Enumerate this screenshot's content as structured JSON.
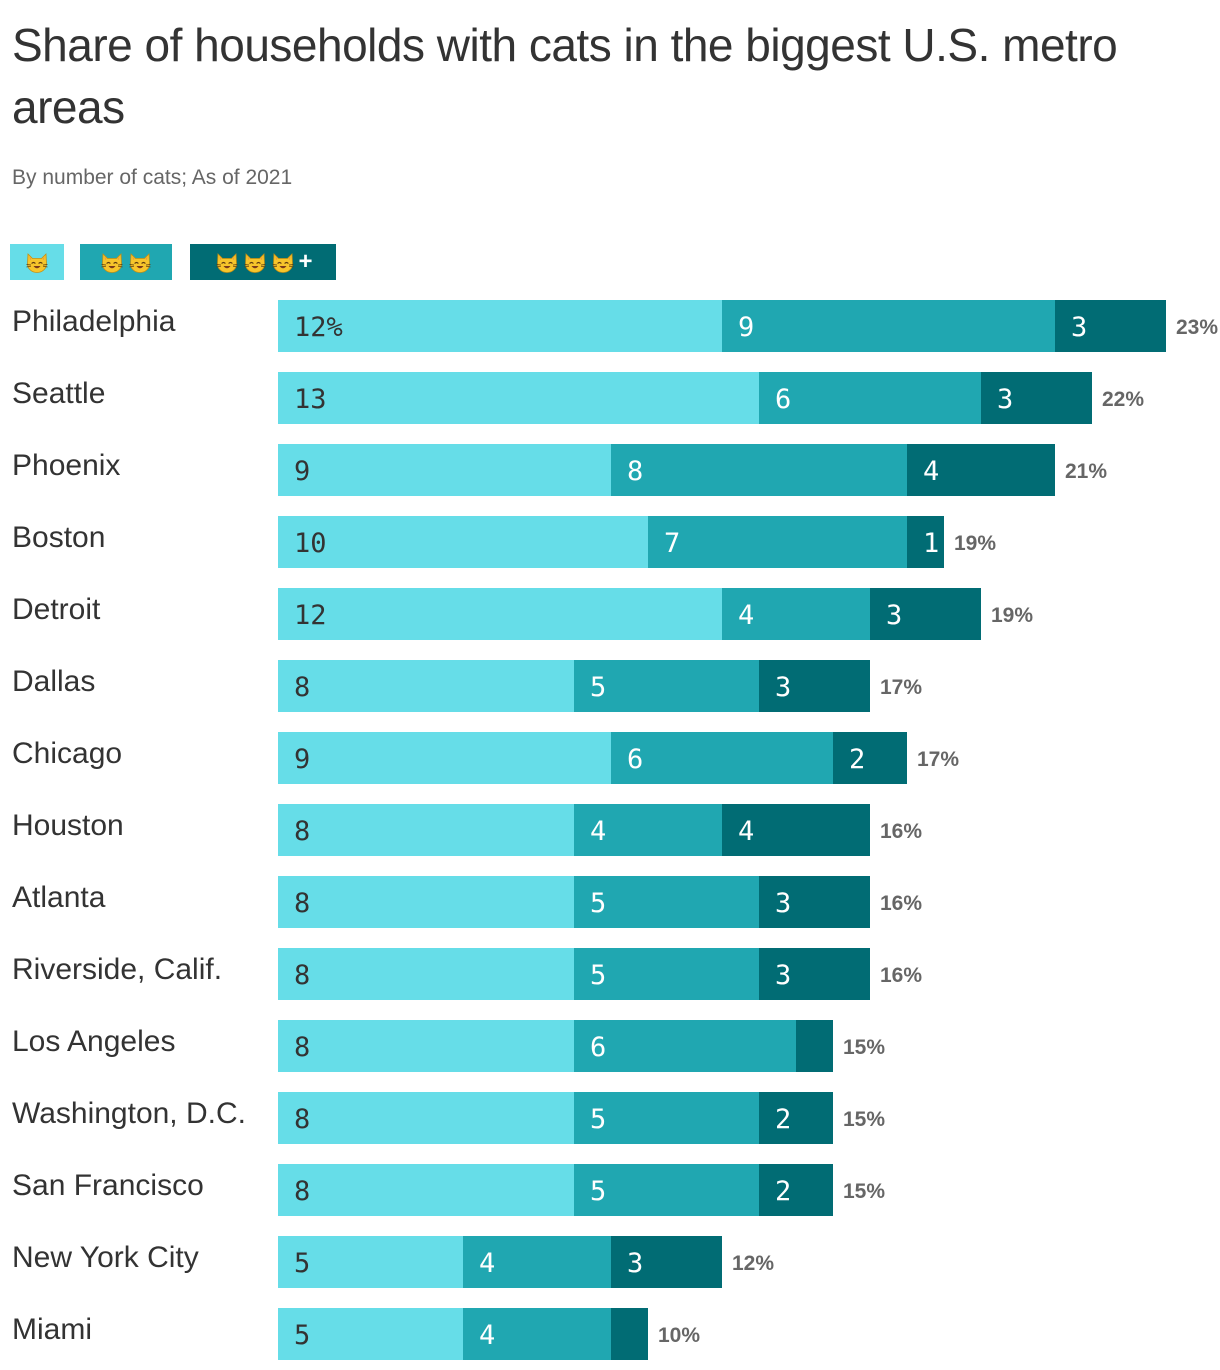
{
  "title": "Share of households with cats in the biggest U.S. metro areas",
  "subtitle": "By number of cats; As of 2021",
  "legend": [
    {
      "icon": "cat-icon",
      "count": 1,
      "plus": "",
      "color": "#66DDE8"
    },
    {
      "icon": "cat-icon",
      "count": 2,
      "plus": "",
      "color": "#20A7B1"
    },
    {
      "icon": "cat-icon",
      "count": 3,
      "plus": "+",
      "color": "#016C74"
    }
  ],
  "colors": {
    "one": "#66DDE8",
    "two": "#20A7B1",
    "three": "#016C74",
    "label_dark": "#333333",
    "label_light": "#ffffff"
  },
  "chart_data": {
    "type": "bar",
    "orientation": "horizontal",
    "stacked": true,
    "title": "Share of households with cats in the biggest U.S. metro areas",
    "subtitle": "By number of cats; As of 2021",
    "unit": "%",
    "categories": [
      "Philadelphia",
      "Seattle",
      "Phoenix",
      "Boston",
      "Detroit",
      "Dallas",
      "Chicago",
      "Houston",
      "Atlanta",
      "Riverside, Calif.",
      "Los Angeles",
      "Washington, D.C.",
      "San Francisco",
      "New York City",
      "Miami"
    ],
    "series": [
      {
        "values": [
          12,
          13,
          9,
          10,
          12,
          8,
          9,
          8,
          8,
          8,
          8,
          8,
          8,
          5,
          5
        ],
        "labels": [
          "12%",
          "13",
          "9",
          "10",
          "12",
          "8",
          "9",
          "8",
          "8",
          "8",
          "8",
          "8",
          "8",
          "5",
          "5"
        ]
      },
      {
        "values": [
          9,
          6,
          8,
          7,
          4,
          5,
          6,
          4,
          5,
          5,
          6,
          5,
          5,
          4,
          4
        ],
        "labels": [
          "9",
          "6",
          "8",
          "7",
          "4",
          "5",
          "6",
          "4",
          "5",
          "5",
          "6",
          "5",
          "5",
          "4",
          "4"
        ]
      },
      {
        "values": [
          3,
          3,
          4,
          1,
          3,
          3,
          2,
          4,
          3,
          3,
          1,
          2,
          2,
          3,
          1
        ],
        "labels": [
          "3",
          "3",
          "4",
          "1",
          "3",
          "3",
          "2",
          "4",
          "3",
          "3",
          "",
          "2",
          "2",
          "3",
          ""
        ]
      }
    ],
    "totals": [
      "23%",
      "22%",
      "21%",
      "19%",
      "19%",
      "17%",
      "17%",
      "16%",
      "16%",
      "16%",
      "15%",
      "15%",
      "15%",
      "12%",
      "10%"
    ],
    "legend_position": "top-left",
    "grid": false
  }
}
